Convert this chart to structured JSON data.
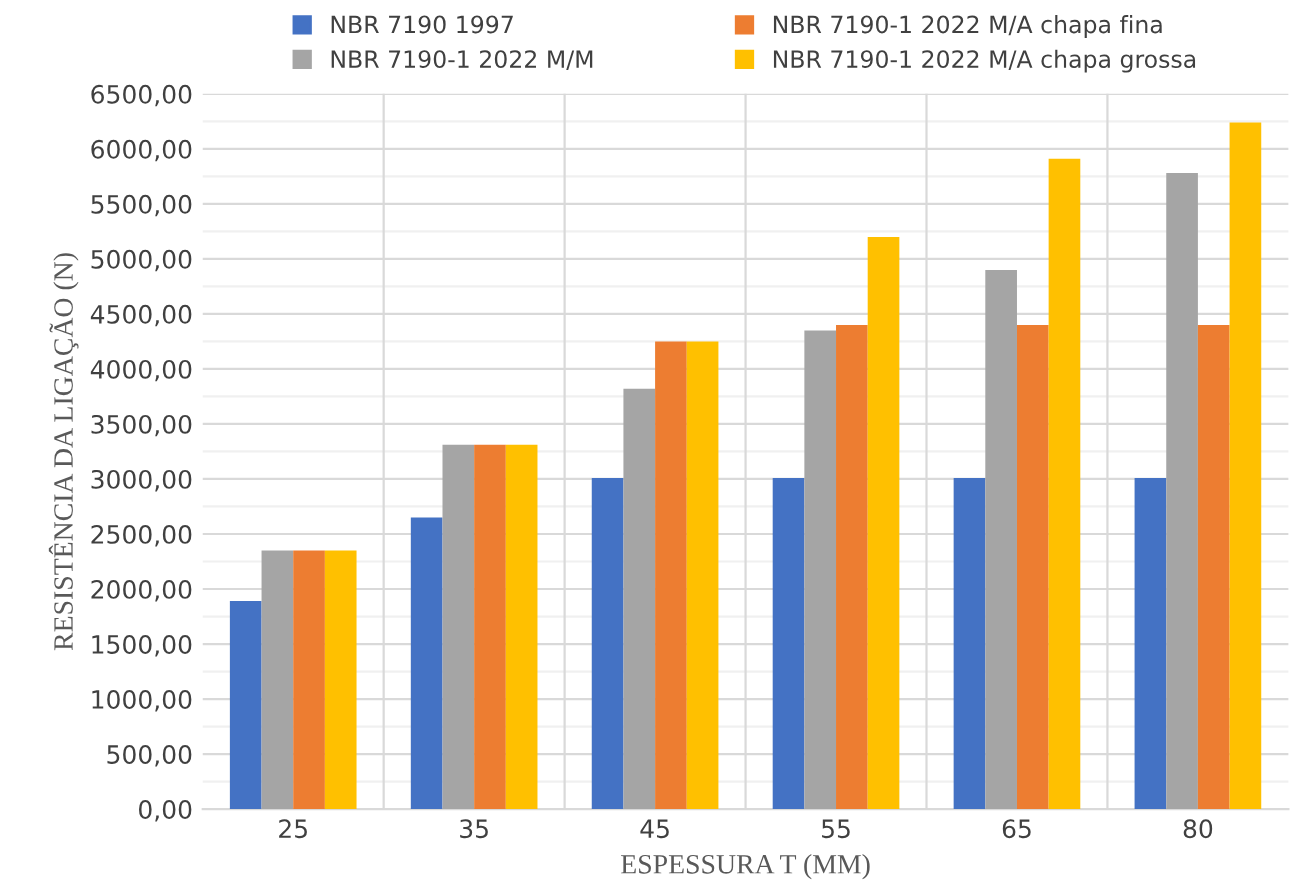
{
  "chart_data": {
    "type": "bar",
    "xlabel": "ESPESSURA T (MM)",
    "ylabel": "RESISTÊNCIA DA LIGAÇÃO (N)",
    "categories": [
      "25",
      "35",
      "45",
      "55",
      "65",
      "80"
    ],
    "series": [
      {
        "name": "NBR 7190 1997",
        "color": "#4472c4",
        "values": [
          1890,
          2650,
          3010,
          3010,
          3010,
          3010
        ]
      },
      {
        "name": "NBR 7190-1 2022 M/M",
        "color": "#a5a5a5",
        "values": [
          2350,
          3310,
          3820,
          4350,
          4900,
          5780
        ]
      },
      {
        "name": "NBR 7190-1 2022 M/A chapa fina",
        "color": "#ed7d31",
        "values": [
          2350,
          3310,
          4250,
          4400,
          4400,
          4400
        ]
      },
      {
        "name": "NBR 7190-1 2022 M/A chapa grossa",
        "color": "#ffc000",
        "values": [
          2350,
          3310,
          4250,
          5200,
          5910,
          6240
        ]
      }
    ],
    "ylim": [
      0,
      6500
    ],
    "yticks": [
      {
        "value": 0,
        "label": "0,00"
      },
      {
        "value": 500,
        "label": "500,00"
      },
      {
        "value": 1000,
        "label": "1000,00"
      },
      {
        "value": 1500,
        "label": "1500,00"
      },
      {
        "value": 2000,
        "label": "2000,00"
      },
      {
        "value": 2500,
        "label": "2500,00"
      },
      {
        "value": 3000,
        "label": "3000,00"
      },
      {
        "value": 3500,
        "label": "3500,00"
      },
      {
        "value": 4000,
        "label": "4000,00"
      },
      {
        "value": 4500,
        "label": "4500,00"
      },
      {
        "value": 5000,
        "label": "5000,00"
      },
      {
        "value": 5500,
        "label": "5500,00"
      },
      {
        "value": 6000,
        "label": "6000,00"
      },
      {
        "value": 6500,
        "label": "6500,00"
      }
    ],
    "grid": "y",
    "legend": "top"
  }
}
